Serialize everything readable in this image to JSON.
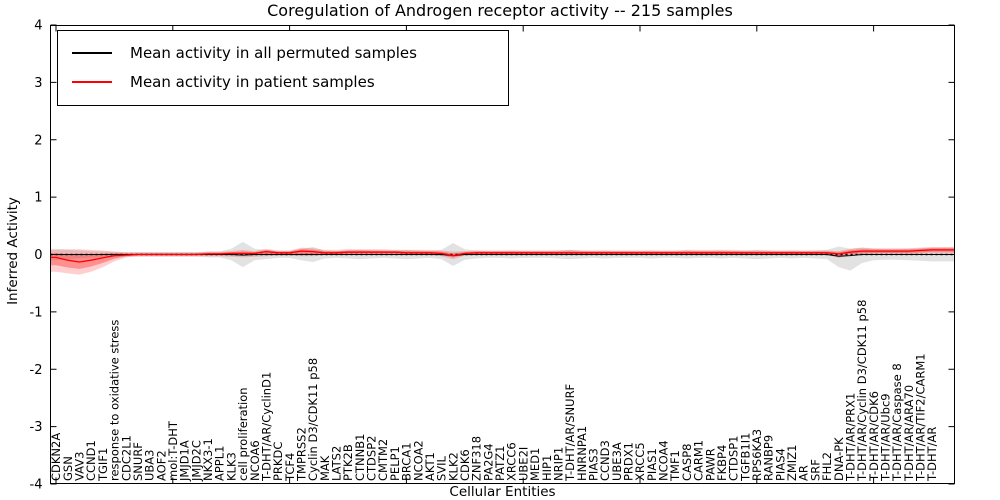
{
  "figure": {
    "title": "Coregulation of Androgen receptor activity -- 215 samples",
    "xlabel": "Cellular Entities",
    "ylabel": "Inferred Activity",
    "legend": [
      {
        "label": "Mean activity in all permuted samples",
        "color": "#000000"
      },
      {
        "label": "Mean activity in patient samples",
        "color": "#ff0000"
      }
    ],
    "colors": {
      "permuted_line": "#000000",
      "patient_line": "#ff0000",
      "permuted_band": "rgba(160,160,160,0.30)",
      "patient_band_outer": "rgba(255,60,60,0.25)",
      "patient_band_inner": "rgba(255,0,0,0.30)",
      "zero_line": "#000000"
    }
  },
  "chart_data": {
    "type": "line",
    "title": "Coregulation of Androgen receptor activity -- 215 samples",
    "xlabel": "Cellular Entities",
    "ylabel": "Inferred Activity",
    "ylim": [
      -4,
      4
    ],
    "yticks": [
      4,
      3,
      2,
      1,
      0,
      -1,
      -2,
      -3,
      -4
    ],
    "grid": false,
    "legend_position": "upper left",
    "zero_line_style": "dotted",
    "x_major_tick_every": 10,
    "categories": [
      "CDKN2A",
      "GSN",
      "VAV3",
      "CCND1",
      "TGIF1",
      "response to oxidative stress",
      "CDC2L1",
      "SNURF",
      "UBA3",
      "AOF2",
      "mol:T-DHT",
      "JMJD1A",
      "JMJD2C",
      "NKX3-1",
      "APPL1",
      "KLK3",
      "cell proliferation",
      "NCOA6",
      "T-DHT/AR/CyclinD1",
      "PRKDC",
      "TCF4",
      "TMPRSS2",
      "Cyclin D3/CDK11 p58",
      "MAK",
      "LATS2",
      "PTK2B",
      "CTNNB1",
      "CTDSP2",
      "CMTM2",
      "PELP1",
      "BRCA1",
      "NCOA2",
      "AKT1",
      "SVIL",
      "KLK2",
      "CDK6",
      "ZNF318",
      "PA2G4",
      "PATZ1",
      "XRCC6",
      "UBE2I",
      "MED1",
      "HIP1",
      "NRIP1",
      "T-DHT/AR/SNURF",
      "HNRNPA1",
      "PIAS3",
      "CCND3",
      "UBE3A",
      "PRDX1",
      "XRCC5",
      "PIAS1",
      "NCOA4",
      "TMF1",
      "CASP8",
      "CARM1",
      "PAWR",
      "FKBP4",
      "CTDSP1",
      "TGFB1I1",
      "RPS6KA3",
      "RANBP9",
      "PIAS4",
      "ZMIZ1",
      "AR",
      "SRF",
      "FHL2",
      "DNA-PK",
      "T-DHT/AR/PRX1",
      "T-DHT/AR/Cyclin D3/CDK11 p58",
      "T-DHT/AR/CDK6",
      "T-DHT/AR/Ubc9",
      "T-DHT/AR/Caspase 8",
      "T-DHT/AR/ARA70",
      "T-DHT/AR/TIF2/CARM1",
      "T-DHT/AR"
    ],
    "series": [
      {
        "name": "Mean activity in all permuted samples",
        "color": "#000000",
        "values": [
          0,
          0,
          0,
          0,
          0,
          0,
          0,
          0,
          0,
          0,
          0,
          0,
          0,
          0,
          0,
          0,
          -0.01,
          0,
          0,
          0,
          0,
          0,
          0,
          0,
          0,
          0,
          0,
          0,
          0,
          0,
          0,
          0,
          0,
          0,
          -0.02,
          0,
          0,
          0,
          0,
          0,
          0,
          0,
          0,
          0,
          0,
          0,
          0,
          0,
          0,
          0,
          0,
          0,
          0,
          0,
          0,
          0,
          0,
          0,
          0,
          0,
          0,
          0,
          0,
          0,
          0,
          0,
          0,
          -0.03,
          -0.02,
          0,
          0,
          0,
          0,
          0,
          0,
          0
        ]
      },
      {
        "name": "Mean activity in patient samples",
        "color": "#ff0000",
        "values": [
          -0.05,
          -0.1,
          -0.13,
          -0.1,
          -0.06,
          -0.02,
          -0.01,
          0,
          0,
          0,
          0,
          0,
          0,
          0.01,
          0.01,
          0.02,
          0.02,
          0.02,
          0.05,
          0.03,
          0.03,
          0.06,
          0.05,
          0.03,
          0.03,
          0.04,
          0.04,
          0.04,
          0.04,
          0.04,
          0.03,
          0.03,
          0.03,
          0.02,
          -0.02,
          0.02,
          0.03,
          0.03,
          0.03,
          0.03,
          0.03,
          0.03,
          0.03,
          0.03,
          0.03,
          0.03,
          0.03,
          0.03,
          0.03,
          0.03,
          0.03,
          0.03,
          0.03,
          0.03,
          0.03,
          0.03,
          0.03,
          0.03,
          0.03,
          0.03,
          0.03,
          0.03,
          0.03,
          0.03,
          0.03,
          0.03,
          0.03,
          0.01,
          0.04,
          0.06,
          0.06,
          0.06,
          0.06,
          0.06,
          0.07,
          0.08
        ]
      }
    ],
    "bands": [
      {
        "name": "permuted-range",
        "color": "rgba(160,160,160,0.30)",
        "upper": [
          0.1,
          0.08,
          0.07,
          0.06,
          0.05,
          0.05,
          0.04,
          0.04,
          0.04,
          0.04,
          0.04,
          0.04,
          0.04,
          0.05,
          0.05,
          0.1,
          0.22,
          0.1,
          0.08,
          0.06,
          0.06,
          0.1,
          0.13,
          0.07,
          0.06,
          0.07,
          0.08,
          0.07,
          0.06,
          0.07,
          0.08,
          0.07,
          0.06,
          0.08,
          0.2,
          0.09,
          0.07,
          0.06,
          0.06,
          0.07,
          0.06,
          0.06,
          0.06,
          0.07,
          0.08,
          0.07,
          0.06,
          0.07,
          0.06,
          0.06,
          0.06,
          0.07,
          0.06,
          0.06,
          0.07,
          0.06,
          0.06,
          0.07,
          0.06,
          0.07,
          0.08,
          0.07,
          0.06,
          0.07,
          0.06,
          0.07,
          0.08,
          0.14,
          0.1,
          0.12,
          0.1,
          0.09,
          0.09,
          0.1,
          0.11,
          0.12
        ],
        "lower": [
          -0.1,
          -0.08,
          -0.07,
          -0.06,
          -0.05,
          -0.05,
          -0.04,
          -0.04,
          -0.04,
          -0.04,
          -0.04,
          -0.04,
          -0.04,
          -0.05,
          -0.05,
          -0.1,
          -0.22,
          -0.1,
          -0.08,
          -0.06,
          -0.06,
          -0.1,
          -0.13,
          -0.07,
          -0.06,
          -0.07,
          -0.08,
          -0.07,
          -0.06,
          -0.07,
          -0.08,
          -0.07,
          -0.06,
          -0.08,
          -0.2,
          -0.09,
          -0.07,
          -0.06,
          -0.06,
          -0.07,
          -0.06,
          -0.06,
          -0.06,
          -0.07,
          -0.08,
          -0.07,
          -0.06,
          -0.07,
          -0.06,
          -0.06,
          -0.06,
          -0.07,
          -0.06,
          -0.06,
          -0.07,
          -0.06,
          -0.06,
          -0.07,
          -0.06,
          -0.07,
          -0.08,
          -0.07,
          -0.06,
          -0.07,
          -0.06,
          -0.07,
          -0.08,
          -0.22,
          -0.28,
          -0.15,
          -0.1,
          -0.09,
          -0.09,
          -0.1,
          -0.11,
          -0.12
        ]
      },
      {
        "name": "patient-range-outer",
        "color": "rgba(255,60,60,0.25)",
        "upper": [
          0.08,
          0.09,
          0.09,
          0.08,
          0.07,
          0.05,
          0.04,
          0.04,
          0.04,
          0.04,
          0.04,
          0.04,
          0.04,
          0.05,
          0.05,
          0.06,
          0.08,
          0.06,
          0.1,
          0.07,
          0.07,
          0.12,
          0.11,
          0.08,
          0.08,
          0.09,
          0.09,
          0.09,
          0.09,
          0.08,
          0.08,
          0.08,
          0.08,
          0.07,
          0.05,
          0.06,
          0.07,
          0.07,
          0.07,
          0.07,
          0.07,
          0.07,
          0.07,
          0.07,
          0.08,
          0.07,
          0.07,
          0.07,
          0.07,
          0.07,
          0.07,
          0.07,
          0.07,
          0.07,
          0.08,
          0.08,
          0.08,
          0.08,
          0.08,
          0.07,
          0.07,
          0.07,
          0.07,
          0.07,
          0.07,
          0.07,
          0.07,
          0.06,
          0.1,
          0.12,
          0.11,
          0.11,
          0.11,
          0.11,
          0.12,
          0.13
        ],
        "lower": [
          -0.3,
          -0.33,
          -0.35,
          -0.3,
          -0.22,
          -0.12,
          -0.05,
          -0.03,
          -0.03,
          -0.03,
          -0.03,
          -0.03,
          -0.03,
          -0.03,
          -0.03,
          -0.04,
          -0.05,
          -0.04,
          -0.03,
          -0.02,
          -0.02,
          -0.03,
          -0.03,
          -0.01,
          -0.01,
          -0.01,
          -0.01,
          -0.01,
          -0.01,
          -0.01,
          -0.01,
          -0.01,
          -0.01,
          -0.03,
          -0.08,
          -0.02,
          -0.01,
          -0.01,
          -0.01,
          -0.01,
          -0.01,
          -0.01,
          -0.01,
          -0.01,
          -0.01,
          -0.01,
          -0.01,
          -0.01,
          -0.01,
          -0.01,
          -0.01,
          -0.01,
          -0.01,
          -0.01,
          -0.01,
          -0.01,
          -0.01,
          -0.01,
          -0.01,
          -0.01,
          -0.01,
          -0.01,
          -0.01,
          -0.01,
          -0.01,
          -0.01,
          -0.01,
          -0.06,
          -0.02,
          -0.01,
          0.0,
          0.0,
          0.0,
          0.0,
          0.01,
          0.02
        ]
      },
      {
        "name": "patient-range-inner",
        "color": "rgba(255,0,0,0.30)",
        "derived_from": "patient-range-outer",
        "scale": 0.55
      }
    ]
  }
}
